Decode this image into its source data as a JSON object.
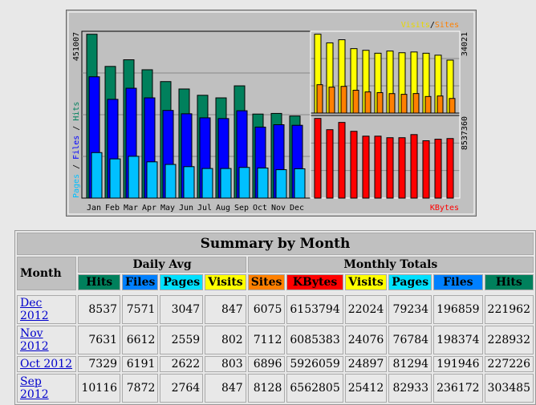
{
  "chart": {
    "months": [
      "Jan",
      "Feb",
      "Mar",
      "Apr",
      "May",
      "Jun",
      "Jul",
      "Aug",
      "Sep",
      "Oct",
      "Nov",
      "Dec"
    ],
    "left_max_label": "451007",
    "visits_max_label": "34021",
    "kbytes_max_label": "8537360",
    "left_max": 451007,
    "visits_max": 34021,
    "kbytes_max": 8537360,
    "legend_left": [
      "Pages",
      "/",
      "Files",
      "/",
      "Hits"
    ],
    "legend_visits": "Visits",
    "legend_sep": "/",
    "legend_sites": "Sites",
    "legend_kbytes": "KBytes",
    "colors": {
      "hits": "#00805c",
      "files": "#0000ff",
      "pages": "#00c0ff",
      "visits": "#ffff00",
      "sites": "#ff8000",
      "kbytes": "#ff0000"
    },
    "hits": [
      443000,
      356000,
      374000,
      347000,
      315000,
      295000,
      278000,
      271000,
      303485,
      227226,
      228932,
      221962
    ],
    "files": [
      328000,
      267000,
      297000,
      271000,
      237000,
      228000,
      217000,
      215000,
      236172,
      191946,
      198374,
      196859
    ],
    "pages": [
      123000,
      106000,
      113000,
      98000,
      91000,
      85000,
      80000,
      80000,
      82933,
      81294,
      76784,
      79234
    ],
    "visits": [
      32800,
      29200,
      30500,
      26800,
      26100,
      24900,
      25800,
      25100,
      25412,
      24897,
      24076,
      22024
    ],
    "sites": [
      11800,
      10800,
      11100,
      9500,
      8800,
      8500,
      8100,
      7800,
      8128,
      6896,
      7112,
      6075
    ],
    "kbytes": [
      8230000,
      7070000,
      7820000,
      6900000,
      6400000,
      6400000,
      6240000,
      6240000,
      6562805,
      5926059,
      6085383,
      6153794
    ]
  },
  "table": {
    "title": "Summary by Month",
    "month_header": "Month",
    "daily_avg": "Daily Avg",
    "monthly_totals": "Monthly Totals",
    "cols": [
      {
        "l": "Hits",
        "c": "#00805c"
      },
      {
        "l": "Files",
        "c": "#0080ff"
      },
      {
        "l": "Pages",
        "c": "#00e0ff"
      },
      {
        "l": "Visits",
        "c": "#ffff00"
      },
      {
        "l": "Sites",
        "c": "#ff8000"
      },
      {
        "l": "KBytes",
        "c": "#ff0000"
      },
      {
        "l": "Visits",
        "c": "#ffff00"
      },
      {
        "l": "Pages",
        "c": "#00e0ff"
      },
      {
        "l": "Files",
        "c": "#0080ff"
      },
      {
        "l": "Hits",
        "c": "#00805c"
      }
    ],
    "rows": [
      {
        "month": "Dec 2012",
        "v": [
          "8537",
          "7571",
          "3047",
          "847",
          "6075",
          "6153794",
          "22024",
          "79234",
          "196859",
          "221962"
        ]
      },
      {
        "month": "Nov 2012",
        "v": [
          "7631",
          "6612",
          "2559",
          "802",
          "7112",
          "6085383",
          "24076",
          "76784",
          "198374",
          "228932"
        ]
      },
      {
        "month": "Oct 2012",
        "v": [
          "7329",
          "6191",
          "2622",
          "803",
          "6896",
          "5926059",
          "24897",
          "81294",
          "191946",
          "227226"
        ]
      },
      {
        "month": "Sep 2012",
        "v": [
          "10116",
          "7872",
          "2764",
          "847",
          "8128",
          "6562805",
          "25412",
          "82933",
          "236172",
          "303485"
        ]
      }
    ]
  }
}
